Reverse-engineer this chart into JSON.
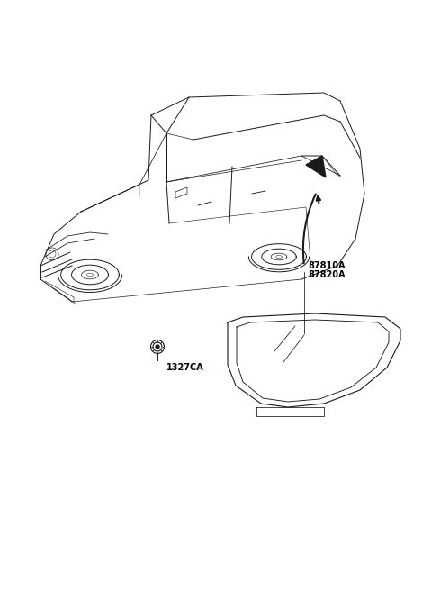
{
  "background_color": "#ffffff",
  "label_87810A": "87810A",
  "label_87820A": "87820A",
  "label_1327CA": "1327CA",
  "label_color": "#000000",
  "line_color": "#000000",
  "car_line_color": "#1a1a1a",
  "part_line_color": "#1a1a1a",
  "font_size_labels": 7.0,
  "fig_width": 4.8,
  "fig_height": 6.55,
  "dpi": 100
}
